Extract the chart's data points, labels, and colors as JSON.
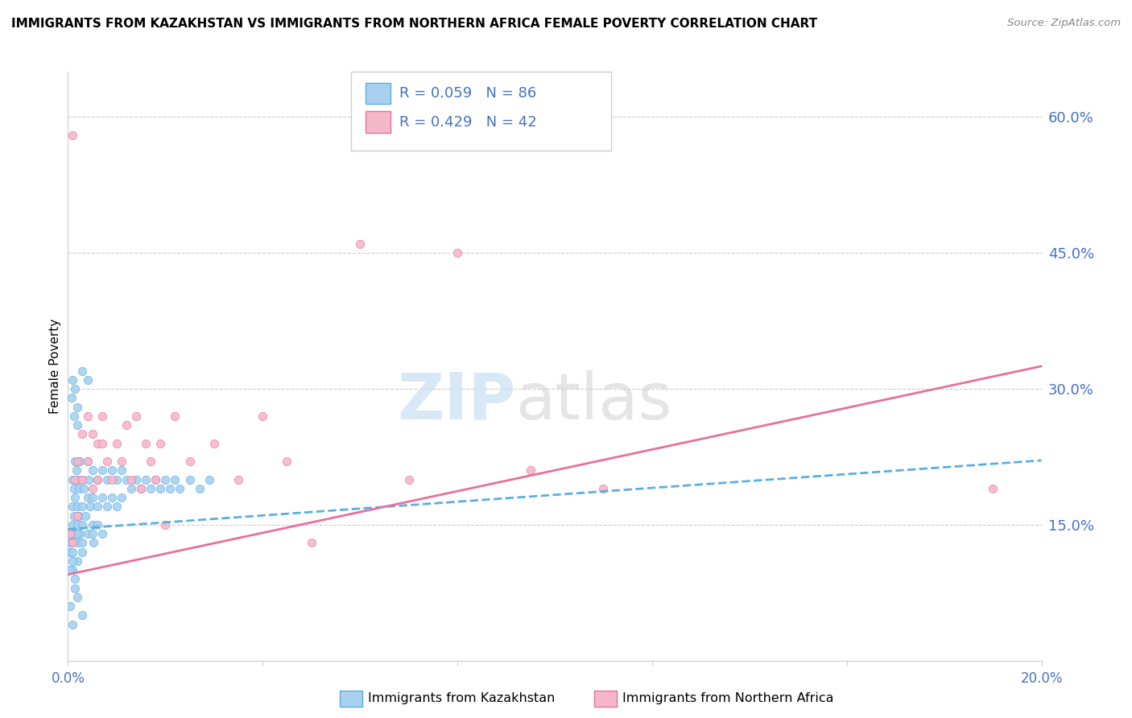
{
  "title": "IMMIGRANTS FROM KAZAKHSTAN VS IMMIGRANTS FROM NORTHERN AFRICA FEMALE POVERTY CORRELATION CHART",
  "source": "Source: ZipAtlas.com",
  "ylabel": "Female Poverty",
  "ylabel_ticks": [
    0.0,
    0.15,
    0.3,
    0.45,
    0.6
  ],
  "ylabel_tick_labels": [
    "",
    "15.0%",
    "30.0%",
    "45.0%",
    "60.0%"
  ],
  "xlim": [
    0.0,
    0.2
  ],
  "ylim": [
    0.0,
    0.65
  ],
  "color_kaz": "#a8d1f0",
  "color_af": "#f5b8cb",
  "color_kaz_line": "#5baee0",
  "color_af_line": "#e8709a",
  "color_text": "#4472c4",
  "kaz_x": [
    0.0005,
    0.0008,
    0.001,
    0.001,
    0.001,
    0.001,
    0.001,
    0.0012,
    0.0013,
    0.0015,
    0.0015,
    0.0015,
    0.0018,
    0.002,
    0.002,
    0.002,
    0.002,
    0.002,
    0.0022,
    0.0023,
    0.0025,
    0.0025,
    0.003,
    0.003,
    0.003,
    0.003,
    0.0032,
    0.0035,
    0.004,
    0.004,
    0.004,
    0.0042,
    0.0045,
    0.005,
    0.005,
    0.005,
    0.0052,
    0.006,
    0.006,
    0.006,
    0.007,
    0.007,
    0.007,
    0.008,
    0.008,
    0.009,
    0.009,
    0.01,
    0.01,
    0.011,
    0.011,
    0.012,
    0.013,
    0.014,
    0.015,
    0.016,
    0.017,
    0.018,
    0.019,
    0.02,
    0.021,
    0.022,
    0.023,
    0.025,
    0.027,
    0.029,
    0.0008,
    0.001,
    0.0012,
    0.0015,
    0.002,
    0.002,
    0.003,
    0.004,
    0.005,
    0.0005,
    0.001,
    0.0015,
    0.002,
    0.003,
    0.0005,
    0.001,
    0.0015,
    0.0005,
    0.001,
    0.002,
    0.003
  ],
  "kaz_y": [
    0.12,
    0.14,
    0.2,
    0.17,
    0.15,
    0.13,
    0.1,
    0.19,
    0.16,
    0.22,
    0.18,
    0.14,
    0.21,
    0.2,
    0.17,
    0.15,
    0.13,
    0.11,
    0.19,
    0.16,
    0.22,
    0.14,
    0.2,
    0.17,
    0.15,
    0.13,
    0.19,
    0.16,
    0.22,
    0.18,
    0.14,
    0.2,
    0.17,
    0.21,
    0.18,
    0.15,
    0.13,
    0.2,
    0.17,
    0.15,
    0.21,
    0.18,
    0.14,
    0.2,
    0.17,
    0.21,
    0.18,
    0.2,
    0.17,
    0.21,
    0.18,
    0.2,
    0.19,
    0.2,
    0.19,
    0.2,
    0.19,
    0.2,
    0.19,
    0.2,
    0.19,
    0.2,
    0.19,
    0.2,
    0.19,
    0.2,
    0.29,
    0.31,
    0.27,
    0.3,
    0.28,
    0.26,
    0.32,
    0.31,
    0.14,
    0.06,
    0.04,
    0.08,
    0.07,
    0.05,
    0.1,
    0.12,
    0.09,
    0.13,
    0.11,
    0.14,
    0.12
  ],
  "af_x": [
    0.0005,
    0.001,
    0.001,
    0.0015,
    0.002,
    0.002,
    0.003,
    0.003,
    0.004,
    0.004,
    0.005,
    0.005,
    0.006,
    0.006,
    0.007,
    0.007,
    0.008,
    0.009,
    0.01,
    0.011,
    0.012,
    0.013,
    0.014,
    0.015,
    0.016,
    0.017,
    0.018,
    0.019,
    0.02,
    0.022,
    0.025,
    0.03,
    0.035,
    0.04,
    0.045,
    0.05,
    0.06,
    0.07,
    0.08,
    0.095,
    0.11,
    0.19
  ],
  "af_y": [
    0.14,
    0.58,
    0.13,
    0.2,
    0.22,
    0.16,
    0.25,
    0.2,
    0.27,
    0.22,
    0.25,
    0.19,
    0.24,
    0.2,
    0.27,
    0.24,
    0.22,
    0.2,
    0.24,
    0.22,
    0.26,
    0.2,
    0.27,
    0.19,
    0.24,
    0.22,
    0.2,
    0.24,
    0.15,
    0.27,
    0.22,
    0.24,
    0.2,
    0.27,
    0.22,
    0.13,
    0.46,
    0.2,
    0.45,
    0.21,
    0.19,
    0.19
  ]
}
